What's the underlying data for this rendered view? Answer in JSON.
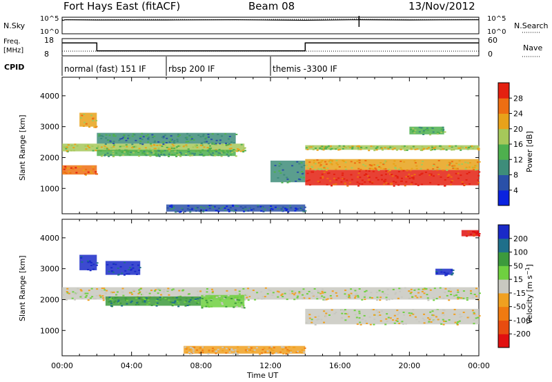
{
  "chart_data": [
    {
      "type": "line",
      "header": {
        "station": "Fort Hays East (fitACF)",
        "beam": "Beam 08",
        "date": "13/Nov/2012"
      },
      "left_label": "N.Sky",
      "right_label": "N.Search",
      "left_ticks": [
        "10^5",
        "10^0"
      ],
      "right_ticks": [
        "10^5",
        "10^0"
      ],
      "series": [
        {
          "name": "N.Sky",
          "x": [
            0,
            0.2,
            2,
            6,
            10,
            12,
            14,
            17,
            20,
            24
          ],
          "values": [
            4.3,
            4.6,
            4.5,
            4.5,
            4.6,
            4.5,
            4.4,
            4.6,
            4.5,
            4.6
          ]
        },
        {
          "name": "N.Search",
          "x": [
            0,
            6,
            10,
            12,
            16.8,
            17,
            17.2,
            20,
            24
          ],
          "values": [
            4.6,
            4.7,
            4.6,
            4.7,
            4.8,
            5.1,
            4.8,
            4.7,
            4.7
          ]
        }
      ],
      "spike_at_hour": 17.1
    },
    {
      "type": "line",
      "left_label": "Freq.\n[MHz]",
      "right_label": "Nave",
      "left_ticks": [
        "18",
        "8"
      ],
      "right_ticks": [
        "60",
        "0"
      ],
      "series": [
        {
          "name": "Freq.",
          "x": [
            0,
            2,
            2,
            14,
            14,
            24
          ],
          "values": [
            16,
            16,
            10.5,
            10.5,
            16,
            16
          ]
        },
        {
          "name": "Nave",
          "x": [
            0,
            24
          ],
          "values": [
            14,
            14
          ]
        }
      ]
    },
    {
      "type": "table",
      "label": "CPID",
      "segments": [
        {
          "start": 0,
          "end": 6,
          "text": "normal (fast) 151 IF"
        },
        {
          "start": 6,
          "end": 12,
          "text": "rbsp 200 IF"
        },
        {
          "start": 12,
          "end": 24,
          "text": "themis -3300 IF"
        }
      ]
    },
    {
      "type": "heatmap",
      "ylabel": "Slant Range [km]",
      "yticks": [
        1000,
        2000,
        3000,
        4000
      ],
      "ylim": [
        180,
        4600
      ],
      "colorbar": {
        "label": "Power [dB]",
        "ticks": [
          "4",
          "8",
          "12",
          "16",
          "20",
          "24",
          "28"
        ],
        "colors": [
          "#0a22e0",
          "#2a50a8",
          "#3e8d7a",
          "#4eb04e",
          "#a6c85a",
          "#e8a21a",
          "#ee6e12",
          "#e42010"
        ]
      },
      "regions": [
        {
          "t0": 0,
          "t1": 2,
          "r0": 1450,
          "r1": 1750,
          "level": 6
        },
        {
          "t0": 1,
          "t1": 2,
          "r0": 3000,
          "r1": 3450,
          "level": 5
        },
        {
          "t0": 0,
          "t1": 10.5,
          "r0": 2200,
          "r1": 2450,
          "level": 4
        },
        {
          "t0": 2,
          "t1": 10,
          "r0": 2050,
          "r1": 2250,
          "level": 3
        },
        {
          "t0": 2,
          "t1": 10,
          "r0": 2450,
          "r1": 2800,
          "level": 2
        },
        {
          "t0": 12,
          "t1": 14,
          "r0": 1200,
          "r1": 1900,
          "level": 2
        },
        {
          "t0": 14,
          "t1": 24,
          "r0": 1100,
          "r1": 1600,
          "level": 7
        },
        {
          "t0": 14,
          "t1": 24,
          "r0": 1600,
          "r1": 1950,
          "level": 5
        },
        {
          "t0": 14,
          "t1": 24,
          "r0": 2250,
          "r1": 2400,
          "level": 4
        },
        {
          "t0": 20,
          "t1": 22,
          "r0": 2750,
          "r1": 3000,
          "level": 3
        },
        {
          "t0": 6,
          "t1": 14,
          "r0": 250,
          "r1": 480,
          "level": 1
        }
      ]
    },
    {
      "type": "heatmap",
      "xlabel": "Time UT",
      "ylabel": "Slant Range [km]",
      "yticks": [
        1000,
        2000,
        3000,
        4000
      ],
      "ylim": [
        180,
        4600
      ],
      "xticks": [
        "00:00",
        "04:00",
        "08:00",
        "12:00",
        "16:00",
        "20:00",
        "00:00"
      ],
      "colorbar": {
        "label": "Velocity [m s^-1]",
        "ticks": [
          "200",
          "100",
          "50",
          "15",
          "-15",
          "-50",
          "-100",
          "-200"
        ],
        "colors": [
          "#1a2ac8",
          "#1f6f8a",
          "#3c9a3c",
          "#6fd040",
          "#c8c8c0",
          "#f0a020",
          "#f07a10",
          "#e84c10",
          "#e01010"
        ]
      },
      "regions": [
        {
          "t0": 1,
          "t1": 2,
          "r0": 2950,
          "r1": 3450,
          "level": 0
        },
        {
          "t0": 2.5,
          "t1": 4.5,
          "r0": 2800,
          "r1": 3250,
          "level": 0
        },
        {
          "t0": 0,
          "t1": 24,
          "r0": 2000,
          "r1": 2400,
          "level": 4
        },
        {
          "t0": 2.5,
          "t1": 8,
          "r0": 1800,
          "r1": 2100,
          "level": 2
        },
        {
          "t0": 8,
          "t1": 10.5,
          "r0": 1750,
          "r1": 2150,
          "level": 3
        },
        {
          "t0": 14,
          "t1": 24,
          "r0": 1200,
          "r1": 1700,
          "level": 4
        },
        {
          "t0": 21.5,
          "t1": 22.5,
          "r0": 2800,
          "r1": 3000,
          "level": 0
        },
        {
          "t0": 7,
          "t1": 14,
          "r0": 250,
          "r1": 500,
          "level": 5
        },
        {
          "t0": 23,
          "t1": 24,
          "r0": 4050,
          "r1": 4250,
          "level": 8
        }
      ]
    }
  ]
}
